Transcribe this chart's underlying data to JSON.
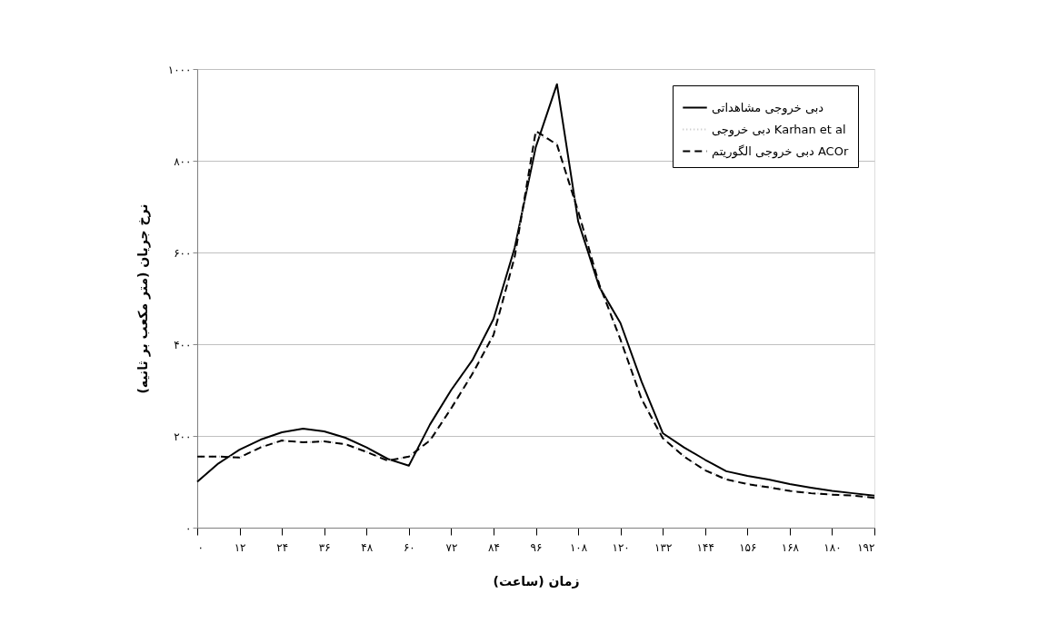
{
  "chart_data": {
    "type": "line",
    "xlabel": "زمان (ساعت)",
    "ylabel": "نرخ جریان (متر مکعب بر ثانیه)",
    "x": [
      0,
      6,
      12,
      18,
      24,
      30,
      36,
      42,
      48,
      54,
      60,
      66,
      72,
      78,
      84,
      90,
      96,
      102,
      108,
      114,
      120,
      126,
      132,
      138,
      144,
      150,
      156,
      162,
      168,
      174,
      180,
      186,
      192
    ],
    "series": [
      {
        "name": "دبی خروجی مشاهداتی",
        "color": "#000000",
        "line_style": "solid",
        "values": [
          100,
          140,
          170,
          192,
          208,
          216,
          210,
          196,
          175,
          150,
          135,
          225,
          300,
          365,
          455,
          610,
          830,
          967,
          668,
          525,
          446,
          318,
          206,
          175,
          148,
          123,
          113,
          105,
          95,
          87,
          80,
          75,
          70
        ]
      },
      {
        "name": "دبی خروجی Karhan et al",
        "color": "#bfbfbf",
        "line_style": "dotted",
        "values": [
          155,
          155,
          153,
          177,
          190,
          186,
          188,
          182,
          166,
          146,
          155,
          192,
          262,
          337,
          422,
          592,
          858,
          838,
          692,
          532,
          412,
          282,
          196,
          156,
          126,
          106,
          96,
          89,
          81,
          76,
          73,
          70,
          66
        ]
      },
      {
        "name": "دبی خروجی الگوریتم ACOr",
        "color": "#000000",
        "line_style": "dashed",
        "values": [
          155,
          155,
          153,
          175,
          190,
          186,
          188,
          182,
          165,
          146,
          155,
          190,
          260,
          335,
          420,
          590,
          865,
          835,
          690,
          530,
          410,
          280,
          195,
          155,
          125,
          105,
          95,
          88,
          80,
          75,
          72,
          70,
          65
        ]
      }
    ],
    "xlim": [
      0,
      192
    ],
    "xticks": [
      {
        "value": 0,
        "label": "۰"
      },
      {
        "value": 12,
        "label": "۱۲"
      },
      {
        "value": 24,
        "label": "۲۴"
      },
      {
        "value": 36,
        "label": "۳۶"
      },
      {
        "value": 48,
        "label": "۴۸"
      },
      {
        "value": 60,
        "label": "۶۰"
      },
      {
        "value": 72,
        "label": "۷۲"
      },
      {
        "value": 84,
        "label": "۸۴"
      },
      {
        "value": 96,
        "label": "۹۶"
      },
      {
        "value": 108,
        "label": "۱۰۸"
      },
      {
        "value": 120,
        "label": "۱۲۰"
      },
      {
        "value": 132,
        "label": "۱۳۲"
      },
      {
        "value": 144,
        "label": "۱۴۴"
      },
      {
        "value": 156,
        "label": "۱۵۶"
      },
      {
        "value": 168,
        "label": "۱۶۸"
      },
      {
        "value": 180,
        "label": "۱۸۰"
      },
      {
        "value": 192,
        "label": "۱۹۲"
      }
    ],
    "ylim": [
      0,
      1000
    ],
    "yticks": [
      {
        "value": 0,
        "label": "۰"
      },
      {
        "value": 200,
        "label": "۲۰۰"
      },
      {
        "value": 400,
        "label": "۴۰۰"
      },
      {
        "value": 600,
        "label": "۶۰۰"
      },
      {
        "value": 800,
        "label": "۸۰۰"
      },
      {
        "value": 1000,
        "label": "۱۰۰۰"
      }
    ],
    "grid": "y",
    "legend": "top right"
  }
}
